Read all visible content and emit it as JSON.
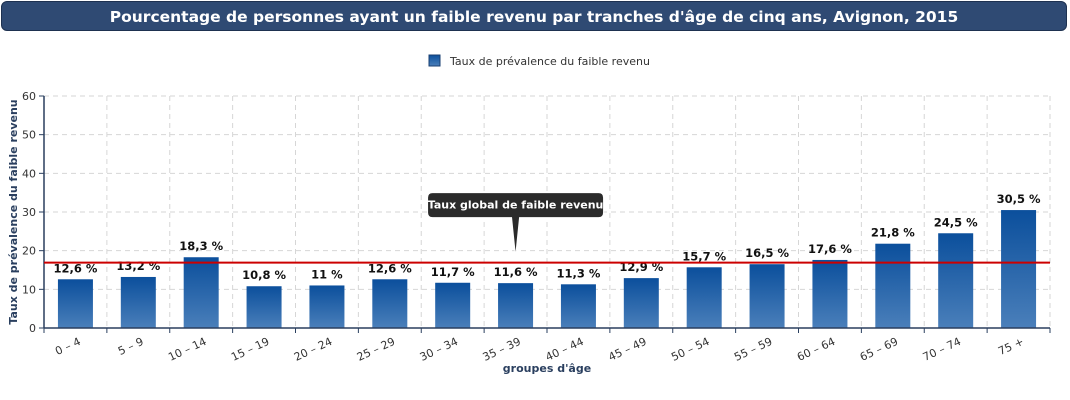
{
  "title": "Pourcentage de personnes ayant un faible revenu par tranches d'âge de cinq ans, Avignon, 2015",
  "colors": {
    "bar_top": "#0b4f9c",
    "bar_bottom": "#4a7fba",
    "reference_line": "#cc0000",
    "title_bg": "#2f4a73"
  },
  "chart_data": {
    "type": "bar",
    "title": "Pourcentage de personnes ayant un faible revenu par tranches d'âge de cinq ans, Avignon, 2015",
    "xlabel": "groupes d'âge",
    "ylabel": "Taux de prévalence du faible revenu",
    "ylim": [
      0,
      60
    ],
    "yticks": [
      0,
      10,
      20,
      30,
      40,
      50,
      60
    ],
    "grid": true,
    "legend_position": "top-center",
    "categories": [
      "0 – 4",
      "5 – 9",
      "10 – 14",
      "15 – 19",
      "20 – 24",
      "25 – 29",
      "30 – 34",
      "35 – 39",
      "40 – 44",
      "45 – 49",
      "50 – 54",
      "55 – 59",
      "60 – 64",
      "65 – 69",
      "70 – 74",
      "75 +"
    ],
    "series": [
      {
        "name": "Taux de prévalence du faible revenu",
        "values": [
          12.6,
          13.2,
          18.3,
          10.8,
          11,
          12.6,
          11.7,
          11.6,
          11.3,
          12.9,
          15.7,
          16.5,
          17.6,
          21.8,
          24.5,
          30.5
        ],
        "labels": [
          "12,6 %",
          "13,2 %",
          "18,3 %",
          "10,8 %",
          "11 %",
          "12,6 %",
          "11,7 %",
          "11,6 %",
          "11,3 %",
          "12,9 %",
          "15,7 %",
          "16,5 %",
          "17,6 %",
          "21,8 %",
          "24,5 %",
          "30,5 %"
        ]
      }
    ],
    "reference_line": {
      "value": 16.9,
      "label": "Taux global de faible revenu",
      "tooltip_category_index": 7
    }
  }
}
